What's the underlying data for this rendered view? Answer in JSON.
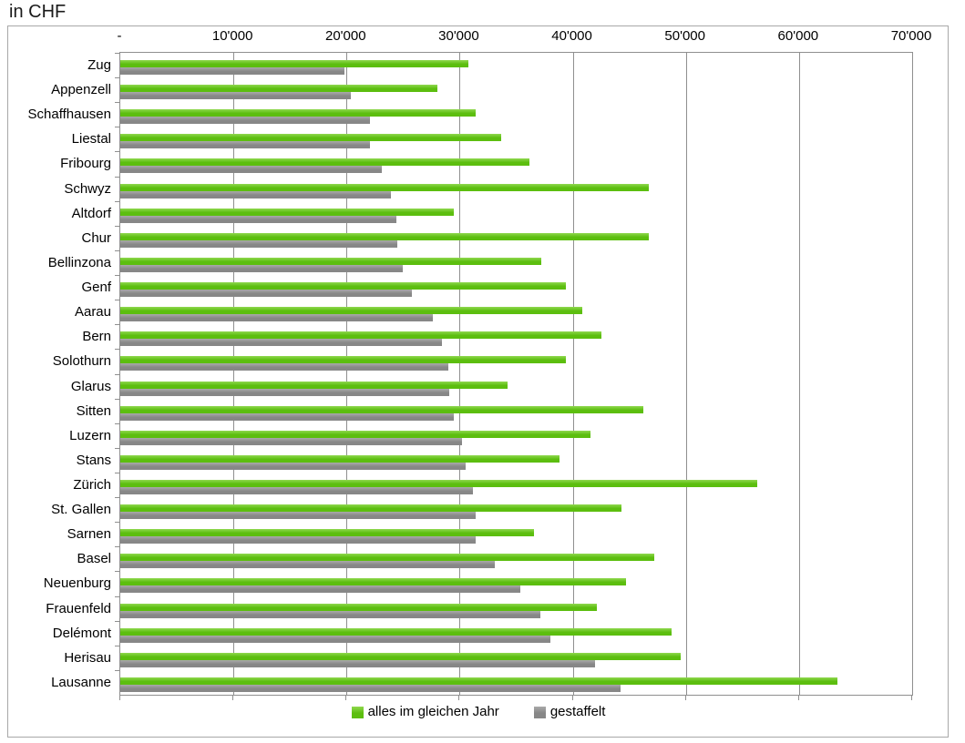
{
  "title": "in CHF",
  "axis": {
    "min": 0,
    "max": 70000,
    "step": 10000,
    "tick_labels": [
      "-",
      "10'000",
      "20'000",
      "30'000",
      "40'000",
      "50'000",
      "60'000",
      "70'000"
    ]
  },
  "colors": {
    "green_main": "#5cbe0f",
    "green_light": "#90d84f",
    "gray_main": "#878787",
    "gray_light": "#aaaaaa",
    "grid": "#8f8f8f"
  },
  "chart_data": {
    "type": "bar",
    "orientation": "horizontal",
    "title": "in CHF",
    "xlabel": "",
    "ylabel": "",
    "xlim": [
      0,
      70000
    ],
    "grid": true,
    "legend_position": "bottom",
    "categories": [
      "Zug",
      "Appenzell",
      "Schaffhausen",
      "Liestal",
      "Fribourg",
      "Schwyz",
      "Altdorf",
      "Chur",
      "Bellinzona",
      "Genf",
      "Aarau",
      "Bern",
      "Solothurn",
      "Glarus",
      "Sitten",
      "Luzern",
      "Stans",
      "Zürich",
      "St. Gallen",
      "Sarnen",
      "Basel",
      "Neuenburg",
      "Frauenfeld",
      "Delémont",
      "Herisau",
      "Lausanne"
    ],
    "series": [
      {
        "name": "alles im gleichen Jahr",
        "key": "alles-im-gleichen-jahr",
        "color": "#5cbe0f",
        "color_light": "#90d84f",
        "values": [
          30800,
          28000,
          31400,
          33700,
          36200,
          46700,
          29500,
          46700,
          37200,
          39400,
          40800,
          42500,
          39400,
          34200,
          46200,
          41600,
          38800,
          56300,
          44300,
          36600,
          47200,
          44700,
          42100,
          48700,
          49500,
          63400
        ]
      },
      {
        "name": "gestaffelt",
        "key": "gestaffelt",
        "color": "#878787",
        "color_light": "#aaaaaa",
        "values": [
          19800,
          20400,
          22100,
          22100,
          23100,
          23900,
          24400,
          24500,
          25000,
          25800,
          27600,
          28400,
          29000,
          29100,
          29500,
          30200,
          30500,
          31200,
          31400,
          31400,
          33100,
          35400,
          37100,
          38000,
          42000,
          44200
        ]
      }
    ]
  }
}
